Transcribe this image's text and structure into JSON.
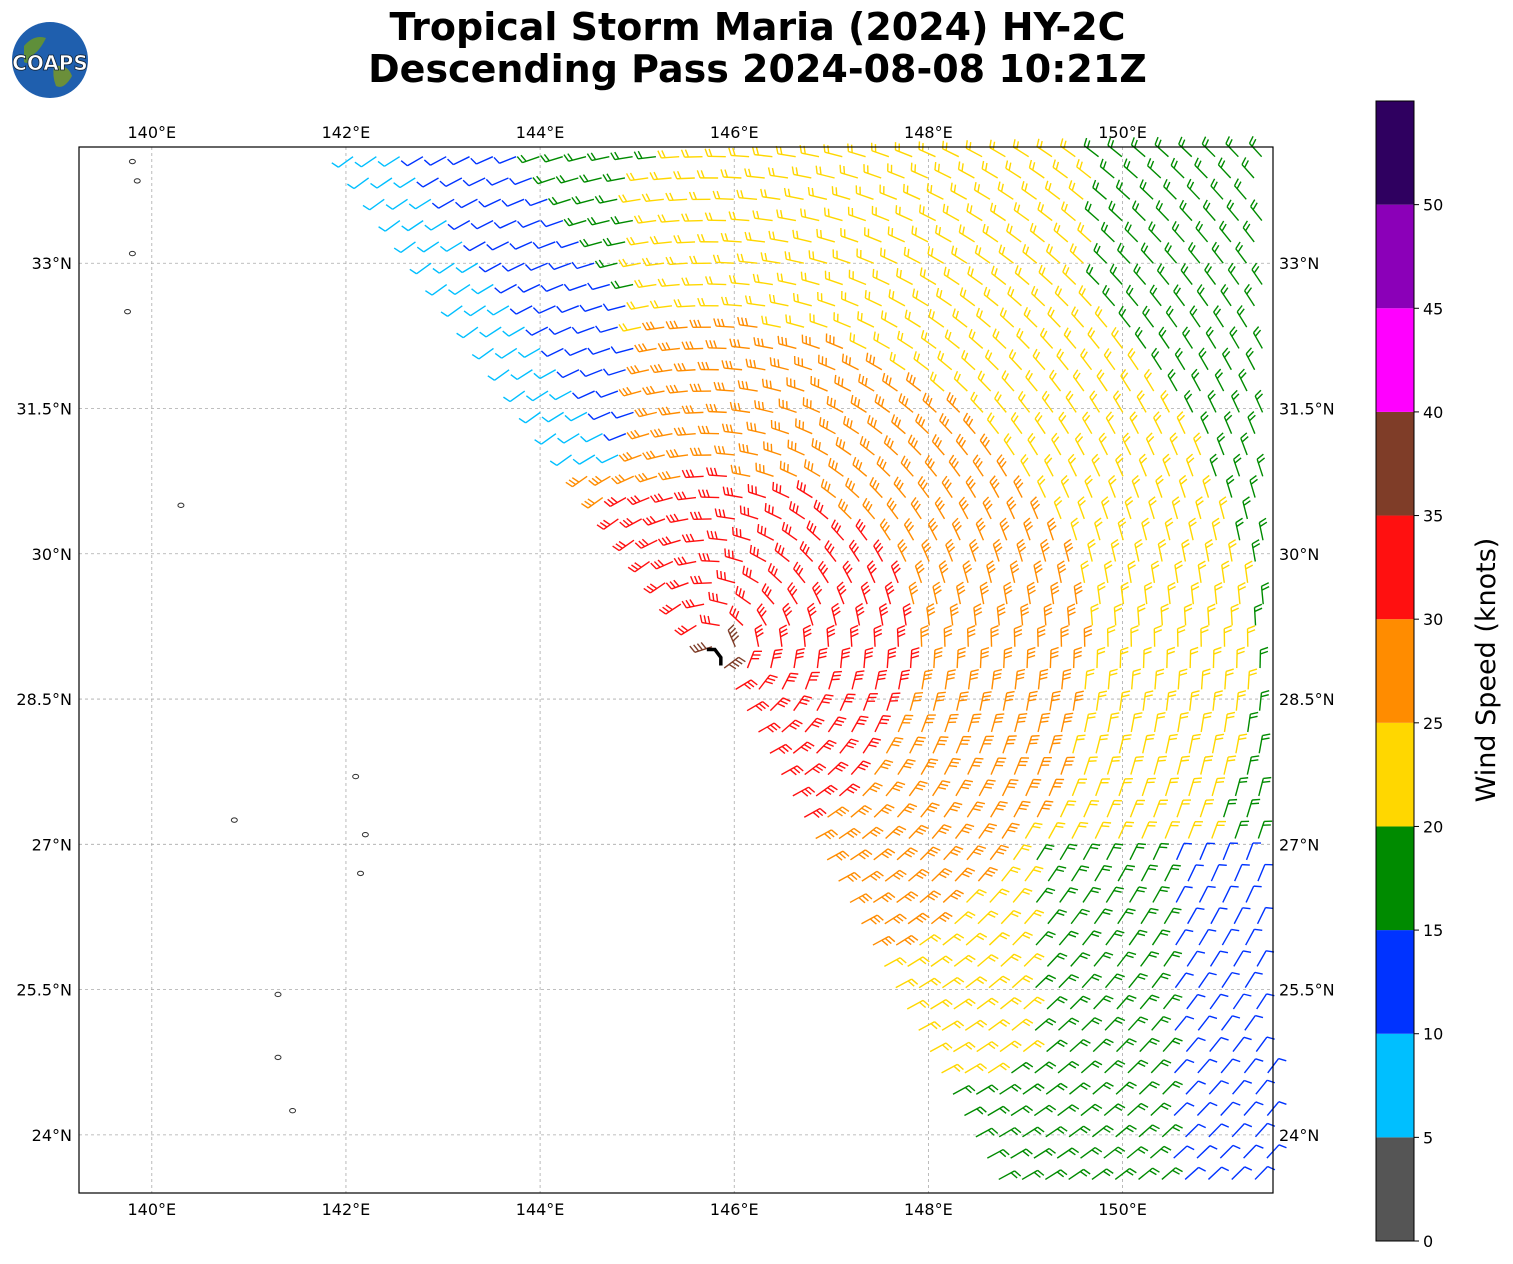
{
  "header": {
    "title_line1": "Tropical Storm Maria (2024) HY-2C",
    "title_line2": "Descending Pass 2024-08-08 10:21Z",
    "logo_text": "COAPS"
  },
  "map": {
    "extent": {
      "lon_min": 139.25,
      "lon_max": 151.55,
      "lat_min": 23.4,
      "lat_max": 34.2
    },
    "lon_ticks": [
      140,
      142,
      144,
      146,
      148,
      150
    ],
    "lon_tick_labels": [
      "140°E",
      "142°E",
      "144°E",
      "146°E",
      "148°E",
      "150°E"
    ],
    "lat_ticks": [
      24,
      25.5,
      27,
      28.5,
      30,
      31.5,
      33
    ],
    "lat_tick_labels": [
      "24°N",
      "25.5°N",
      "27°N",
      "28.5°N",
      "30°N",
      "31.5°N",
      "33°N"
    ],
    "gridlines": true,
    "islands": [
      {
        "lon": 139.8,
        "lat": 34.05
      },
      {
        "lon": 139.85,
        "lat": 33.85
      },
      {
        "lon": 139.8,
        "lat": 33.1
      },
      {
        "lon": 139.75,
        "lat": 32.5
      },
      {
        "lon": 140.3,
        "lat": 30.5
      },
      {
        "lon": 142.1,
        "lat": 27.7
      },
      {
        "lon": 142.2,
        "lat": 27.1
      },
      {
        "lon": 142.15,
        "lat": 26.7
      },
      {
        "lon": 140.85,
        "lat": 27.25
      },
      {
        "lon": 141.3,
        "lat": 25.45
      },
      {
        "lon": 141.3,
        "lat": 24.8
      },
      {
        "lon": 141.45,
        "lat": 24.25
      }
    ],
    "storm_center": {
      "lon": 145.8,
      "lat": 28.95,
      "label": "storm-center-marker"
    }
  },
  "colorbar": {
    "label": "Wind Speed (knots)",
    "min": 0,
    "max": 55,
    "bins": [
      {
        "from": 0,
        "to": 5,
        "color": "#555555"
      },
      {
        "from": 5,
        "to": 10,
        "color": "#00bfff"
      },
      {
        "from": 10,
        "to": 15,
        "color": "#0033ff"
      },
      {
        "from": 15,
        "to": 20,
        "color": "#008b00"
      },
      {
        "from": 20,
        "to": 25,
        "color": "#ffd700"
      },
      {
        "from": 25,
        "to": 30,
        "color": "#ff8c00"
      },
      {
        "from": 30,
        "to": 35,
        "color": "#ff1010"
      },
      {
        "from": 35,
        "to": 40,
        "color": "#7f3d28"
      },
      {
        "from": 40,
        "to": 45,
        "color": "#ff00ff"
      },
      {
        "from": 45,
        "to": 50,
        "color": "#8b00b8"
      },
      {
        "from": 50,
        "to": 55,
        "color": "#2f0060"
      }
    ],
    "tick_labels": [
      "0",
      "5",
      "10",
      "15",
      "20",
      "25",
      "30",
      "35",
      "40",
      "45",
      "50"
    ]
  },
  "chart_data": {
    "type": "scatter",
    "title": "Tropical Storm Maria (2024) HY-2C Descending Pass 2024-08-08 10:21Z",
    "xlabel": "",
    "ylabel": "",
    "xlim": [
      139.25,
      151.55
    ],
    "ylim": [
      23.4,
      34.2
    ],
    "swath": {
      "description_fields": "descending scatterometer wind barbs",
      "west_edge": [
        [
          142.0,
          34.2
        ],
        [
          145.8,
          29.0
        ],
        [
          148.8,
          23.4
        ]
      ],
      "storm_center": [
        145.8,
        28.95
      ],
      "bands": [
        {
          "name": "",
          "value_knots": 7
        },
        {
          "name": "",
          "value_knots": 12
        },
        {
          "name": "",
          "value_knots": 17
        },
        {
          "name": "",
          "value_knots": 22
        },
        {
          "name": "",
          "value_knots": 27
        },
        {
          "name": "",
          "value_knots": 32
        },
        {
          "name": "",
          "value_knots": 37
        }
      ]
    }
  }
}
